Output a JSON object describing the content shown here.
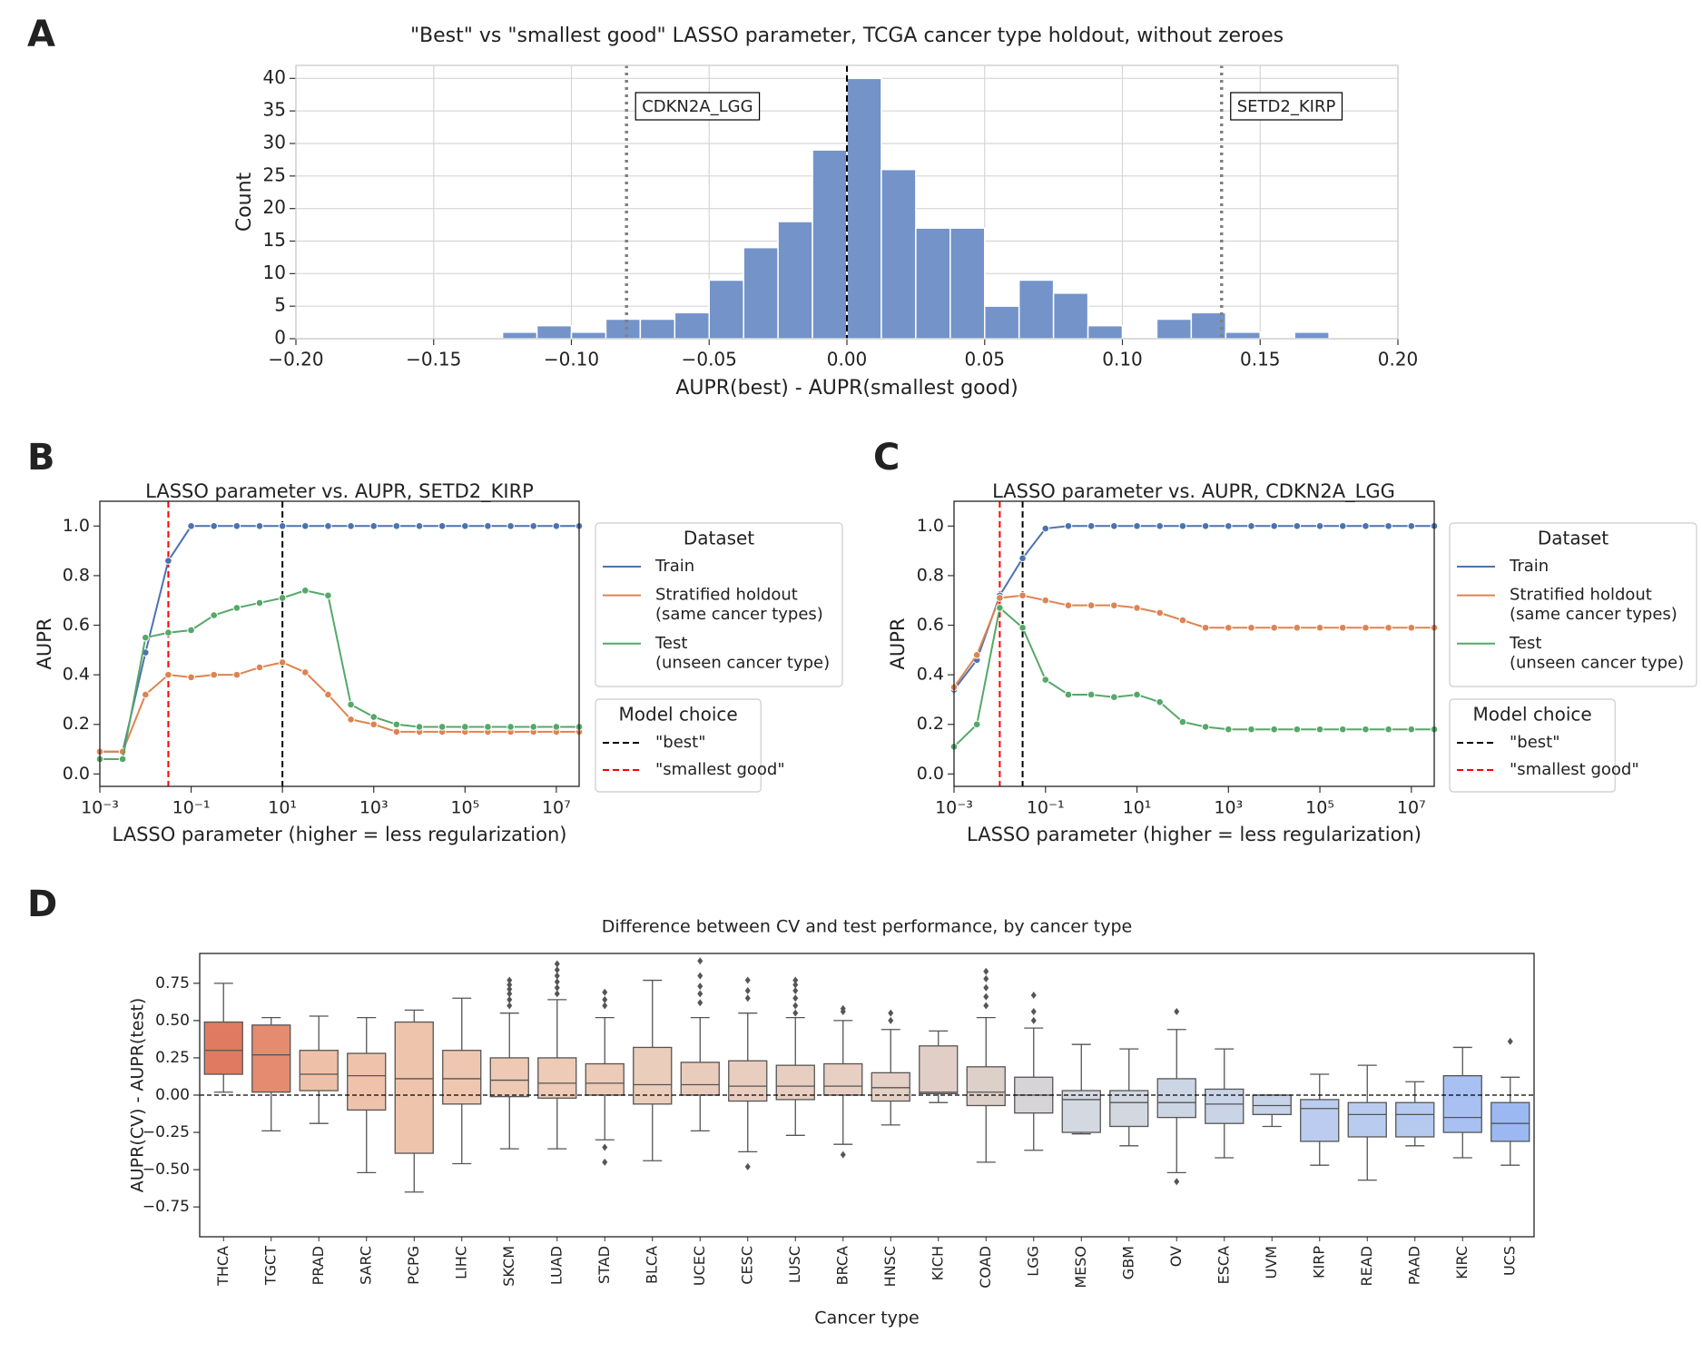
{
  "chart_data": [
    {
      "type": "histogram",
      "panel_label": "A",
      "title": "\"Best\" vs \"smallest good\" LASSO parameter, TCGA cancer type holdout, without zeroes",
      "xlabel": "AUPR(best) - AUPR(smallest good)",
      "ylabel": "Count",
      "bins": [
        -0.125,
        -0.1125,
        -0.1,
        -0.0875,
        -0.075,
        -0.0625,
        -0.05,
        -0.0375,
        -0.025,
        -0.0125,
        0,
        0.0125,
        0.025,
        0.0375,
        0.05,
        0.0625,
        0.075,
        0.0875,
        0.1,
        0.1125,
        0.125,
        0.1375,
        0.15,
        0.1625,
        0.175
      ],
      "values": [
        1,
        2,
        1,
        3,
        3,
        4,
        9,
        14,
        18,
        29,
        40,
        26,
        17,
        17,
        5,
        9,
        7,
        2,
        0,
        3,
        4,
        1,
        0,
        1
      ],
      "color": "#7393c9",
      "grid": true,
      "xlim": [
        -0.2,
        0.2
      ],
      "xticks": [
        {
          "value": -0.2,
          "label": "−0.20"
        },
        {
          "value": -0.15,
          "label": "−0.15"
        },
        {
          "value": -0.1,
          "label": "−0.10"
        },
        {
          "value": -0.05,
          "label": "−0.05"
        },
        {
          "value": 0,
          "label": "0.00"
        },
        {
          "value": 0.05,
          "label": "0.05"
        },
        {
          "value": 0.1,
          "label": "0.10"
        },
        {
          "value": 0.15,
          "label": "0.15"
        },
        {
          "value": 0.2,
          "label": "0.20"
        }
      ],
      "ylim": [
        0,
        42
      ],
      "yticks": [
        0,
        5,
        10,
        15,
        20,
        25,
        30,
        35,
        40
      ],
      "vlines": [
        {
          "x": 0,
          "color": "#000000",
          "style": "dashed"
        },
        {
          "x": -0.08,
          "color": "#808080",
          "style": "dotted",
          "label": "CDKN2A_LGG"
        },
        {
          "x": 0.136,
          "color": "#808080",
          "style": "dotted",
          "label": "SETD2_KIRP"
        }
      ]
    },
    {
      "type": "line",
      "panel_label": "B",
      "title": "LASSO parameter vs. AUPR, SETD2_KIRP",
      "xlabel": "LASSO parameter (higher = less regularization)",
      "ylabel": "AUPR",
      "xscale": "log",
      "x": [
        0.001,
        0.00316,
        0.01,
        0.0316,
        0.1,
        0.316,
        1,
        3.16,
        10,
        31.6,
        100,
        316,
        1000,
        3160,
        10000,
        31600,
        100000,
        316000,
        1000000,
        3160000,
        10000000,
        31600000
      ],
      "xlim": [
        0.001,
        31600000
      ],
      "xticks": [
        {
          "value": 0.001,
          "label": "10⁻³"
        },
        {
          "value": 0.1,
          "label": "10⁻¹"
        },
        {
          "value": 10,
          "label": "10¹"
        },
        {
          "value": 1000,
          "label": "10³"
        },
        {
          "value": 100000,
          "label": "10⁵"
        },
        {
          "value": 10000000,
          "label": "10⁷"
        }
      ],
      "ylim": [
        -0.05,
        1.1
      ],
      "yticks": [
        {
          "value": 0,
          "label": "0.0"
        },
        0.2,
        0.4,
        0.6,
        0.8,
        {
          "value": 1,
          "label": "1.0"
        }
      ],
      "legend_title": "Dataset",
      "vline_legend_title": "Model choice",
      "series": [
        {
          "name": "Train",
          "color": "#4c72b0",
          "values": [
            0.09,
            0.09,
            0.49,
            0.86,
            1,
            1,
            1,
            1,
            1,
            1,
            1,
            1,
            1,
            1,
            1,
            1,
            1,
            1,
            1,
            1,
            1,
            1
          ]
        },
        {
          "name": "Stratified holdout\n(same cancer types)",
          "color": "#dd8452",
          "values": [
            0.09,
            0.09,
            0.32,
            0.4,
            0.39,
            0.4,
            0.4,
            0.43,
            0.45,
            0.41,
            0.32,
            0.22,
            0.2,
            0.17,
            0.17,
            0.17,
            0.17,
            0.17,
            0.17,
            0.17,
            0.17,
            0.17
          ]
        },
        {
          "name": "Test\n(unseen cancer type)",
          "color": "#55a868",
          "values": [
            0.06,
            0.06,
            0.55,
            0.57,
            0.58,
            0.64,
            0.67,
            0.69,
            0.71,
            0.74,
            0.72,
            0.28,
            0.23,
            0.2,
            0.19,
            0.19,
            0.19,
            0.19,
            0.19,
            0.19,
            0.19,
            0.19
          ]
        }
      ],
      "vlines": [
        {
          "x": 10,
          "color": "#000000",
          "style": "dashed",
          "name": "\"best\""
        },
        {
          "x": 0.0316,
          "color": "#ff0000",
          "style": "dashed",
          "name": "\"smallest good\""
        }
      ]
    },
    {
      "type": "line",
      "panel_label": "C",
      "title": "LASSO parameter vs. AUPR, CDKN2A_LGG",
      "xlabel": "LASSO parameter (higher = less regularization)",
      "ylabel": "AUPR",
      "xscale": "log",
      "x": [
        0.001,
        0.00316,
        0.01,
        0.0316,
        0.1,
        0.316,
        1,
        3.16,
        10,
        31.6,
        100,
        316,
        1000,
        3160,
        10000,
        31600,
        100000,
        316000,
        1000000,
        3160000,
        10000000,
        31600000
      ],
      "xlim": [
        0.001,
        31600000
      ],
      "xticks": [
        {
          "value": 0.001,
          "label": "10⁻³"
        },
        {
          "value": 0.1,
          "label": "10⁻¹"
        },
        {
          "value": 10,
          "label": "10¹"
        },
        {
          "value": 1000,
          "label": "10³"
        },
        {
          "value": 100000,
          "label": "10⁵"
        },
        {
          "value": 10000000,
          "label": "10⁷"
        }
      ],
      "ylim": [
        -0.05,
        1.1
      ],
      "yticks": [
        {
          "value": 0,
          "label": "0.0"
        },
        0.2,
        0.4,
        0.6,
        0.8,
        {
          "value": 1,
          "label": "1.0"
        }
      ],
      "legend_title": "Dataset",
      "vline_legend_title": "Model choice",
      "series": [
        {
          "name": "Train",
          "color": "#4c72b0",
          "values": [
            0.34,
            0.46,
            0.72,
            0.87,
            0.99,
            1,
            1,
            1,
            1,
            1,
            1,
            1,
            1,
            1,
            1,
            1,
            1,
            1,
            1,
            1,
            1,
            1
          ]
        },
        {
          "name": "Stratified holdout\n(same cancer types)",
          "color": "#dd8452",
          "values": [
            0.35,
            0.48,
            0.71,
            0.72,
            0.7,
            0.68,
            0.68,
            0.68,
            0.67,
            0.65,
            0.62,
            0.59,
            0.59,
            0.59,
            0.59,
            0.59,
            0.59,
            0.59,
            0.59,
            0.59,
            0.59,
            0.59
          ]
        },
        {
          "name": "Test\n(unseen cancer type)",
          "color": "#55a868",
          "values": [
            0.11,
            0.2,
            0.67,
            0.59,
            0.38,
            0.32,
            0.32,
            0.31,
            0.32,
            0.29,
            0.21,
            0.19,
            0.18,
            0.18,
            0.18,
            0.18,
            0.18,
            0.18,
            0.18,
            0.18,
            0.18,
            0.18
          ]
        }
      ],
      "vlines": [
        {
          "x": 0.0316,
          "color": "#000000",
          "style": "dashed",
          "name": "\"best\""
        },
        {
          "x": 0.01,
          "color": "#ff0000",
          "style": "dashed",
          "name": "\"smallest good\""
        }
      ]
    },
    {
      "type": "box",
      "panel_label": "D",
      "title": "Difference between CV and test performance, by cancer type",
      "xlabel": "Cancer type",
      "ylabel": "AUPR(CV) - AUPR(test)",
      "ylim": [
        -0.95,
        0.95
      ],
      "yticks": [
        0.75,
        {
          "value": 0.5,
          "label": "0.50"
        },
        0.25,
        {
          "value": 0,
          "label": "0.00"
        },
        {
          "value": -0.25,
          "label": "−0.25"
        },
        {
          "value": -0.5,
          "label": "−0.50"
        },
        {
          "value": -0.75,
          "label": "−0.75"
        }
      ],
      "hline": 0,
      "categories": [
        "THCA",
        "TGCT",
        "PRAD",
        "SARC",
        "PCPG",
        "LIHC",
        "SKCM",
        "LUAD",
        "STAD",
        "BLCA",
        "UCEC",
        "CESC",
        "LUSC",
        "BRCA",
        "HNSC",
        "KICH",
        "COAD",
        "LGG",
        "MESO",
        "GBM",
        "OV",
        "ESCA",
        "UVM",
        "KIRP",
        "READ",
        "PAAD",
        "KIRC",
        "UCS"
      ],
      "colors": [
        "#e07b62",
        "#e58b70",
        "#efc0a8",
        "#efc3ab",
        "#efc4ad",
        "#efc7b1",
        "#eecab5",
        "#eecbb7",
        "#eccbb9",
        "#ebcdbc",
        "#eaccbd",
        "#e9cdbf",
        "#e8cec1",
        "#e7cfc3",
        "#e5d0c5",
        "#e1cfc7",
        "#ddd0c9",
        "#d7d4d7",
        "#d4d8e1",
        "#d2d7e0",
        "#ccd5e4",
        "#c9d4e6",
        "#c6d3e8",
        "#bcccf0",
        "#b9ccf0",
        "#b6caf0",
        "#a8c0f2",
        "#9bb8f3"
      ],
      "boxes": [
        {
          "whislo": 0.02,
          "q1": 0.14,
          "med": 0.3,
          "q3": 0.49,
          "whishi": 0.75,
          "fliers": []
        },
        {
          "whislo": -0.24,
          "q1": 0.02,
          "med": 0.27,
          "q3": 0.47,
          "whishi": 0.52,
          "fliers": []
        },
        {
          "whislo": -0.19,
          "q1": 0.03,
          "med": 0.14,
          "q3": 0.3,
          "whishi": 0.53,
          "fliers": []
        },
        {
          "whislo": -0.52,
          "q1": -0.1,
          "med": 0.13,
          "q3": 0.28,
          "whishi": 0.52,
          "fliers": []
        },
        {
          "whislo": -0.65,
          "q1": -0.39,
          "med": 0.11,
          "q3": 0.49,
          "whishi": 0.57,
          "fliers": []
        },
        {
          "whislo": -0.46,
          "q1": -0.06,
          "med": 0.11,
          "q3": 0.3,
          "whishi": 0.65,
          "fliers": []
        },
        {
          "whislo": -0.36,
          "q1": -0.01,
          "med": 0.1,
          "q3": 0.25,
          "whishi": 0.55,
          "fliers": [
            0.6,
            0.64,
            0.68,
            0.71,
            0.74,
            0.77
          ]
        },
        {
          "whislo": -0.36,
          "q1": -0.02,
          "med": 0.08,
          "q3": 0.25,
          "whishi": 0.64,
          "fliers": [
            0.68,
            0.72,
            0.76,
            0.8,
            0.84,
            0.88
          ]
        },
        {
          "whislo": -0.3,
          "q1": 0,
          "med": 0.08,
          "q3": 0.21,
          "whishi": 0.52,
          "fliers": [
            0.6,
            0.64,
            0.69,
            -0.35,
            -0.45
          ]
        },
        {
          "whislo": -0.44,
          "q1": -0.06,
          "med": 0.07,
          "q3": 0.32,
          "whishi": 0.77,
          "fliers": []
        },
        {
          "whislo": -0.24,
          "q1": 0,
          "med": 0.07,
          "q3": 0.22,
          "whishi": 0.52,
          "fliers": [
            0.62,
            0.68,
            0.73,
            0.8,
            0.9
          ]
        },
        {
          "whislo": -0.38,
          "q1": -0.04,
          "med": 0.06,
          "q3": 0.23,
          "whishi": 0.55,
          "fliers": [
            0.65,
            0.7,
            0.77,
            -0.48
          ]
        },
        {
          "whislo": -0.27,
          "q1": -0.03,
          "med": 0.06,
          "q3": 0.2,
          "whishi": 0.52,
          "fliers": [
            0.55,
            0.6,
            0.65,
            0.7,
            0.74,
            0.77
          ]
        },
        {
          "whislo": -0.33,
          "q1": 0,
          "med": 0.06,
          "q3": 0.21,
          "whishi": 0.5,
          "fliers": [
            0.56,
            0.58,
            -0.4
          ]
        },
        {
          "whislo": -0.2,
          "q1": -0.04,
          "med": 0.05,
          "q3": 0.15,
          "whishi": 0.44,
          "fliers": [
            0.5,
            0.55
          ]
        },
        {
          "whislo": -0.05,
          "q1": 0.01,
          "med": 0.02,
          "q3": 0.33,
          "whishi": 0.43,
          "fliers": []
        },
        {
          "whislo": -0.45,
          "q1": -0.07,
          "med": 0.02,
          "q3": 0.19,
          "whishi": 0.52,
          "fliers": [
            0.6,
            0.66,
            0.72,
            0.78,
            0.83
          ]
        },
        {
          "whislo": -0.37,
          "q1": -0.12,
          "med": 0,
          "q3": 0.12,
          "whishi": 0.45,
          "fliers": [
            0.5,
            0.56,
            0.67
          ]
        },
        {
          "whislo": -0.26,
          "q1": -0.25,
          "med": -0.03,
          "q3": 0.03,
          "whishi": 0.34,
          "fliers": []
        },
        {
          "whislo": -0.34,
          "q1": -0.21,
          "med": -0.05,
          "q3": 0.03,
          "whishi": 0.31,
          "fliers": []
        },
        {
          "whislo": -0.52,
          "q1": -0.15,
          "med": -0.05,
          "q3": 0.11,
          "whishi": 0.44,
          "fliers": [
            0.56,
            -0.58
          ]
        },
        {
          "whislo": -0.42,
          "q1": -0.19,
          "med": -0.06,
          "q3": 0.04,
          "whishi": 0.31,
          "fliers": []
        },
        {
          "whislo": -0.21,
          "q1": -0.13,
          "med": -0.07,
          "q3": 0,
          "whishi": 0,
          "fliers": []
        },
        {
          "whislo": -0.47,
          "q1": -0.31,
          "med": -0.09,
          "q3": -0.03,
          "whishi": 0.14,
          "fliers": []
        },
        {
          "whislo": -0.57,
          "q1": -0.28,
          "med": -0.13,
          "q3": -0.05,
          "whishi": 0.2,
          "fliers": []
        },
        {
          "whislo": -0.34,
          "q1": -0.28,
          "med": -0.13,
          "q3": -0.05,
          "whishi": 0.09,
          "fliers": []
        },
        {
          "whislo": -0.42,
          "q1": -0.25,
          "med": -0.15,
          "q3": 0.13,
          "whishi": 0.32,
          "fliers": []
        },
        {
          "whislo": -0.47,
          "q1": -0.31,
          "med": -0.19,
          "q3": -0.05,
          "whishi": 0.12,
          "fliers": [
            0.36
          ]
        }
      ]
    }
  ]
}
